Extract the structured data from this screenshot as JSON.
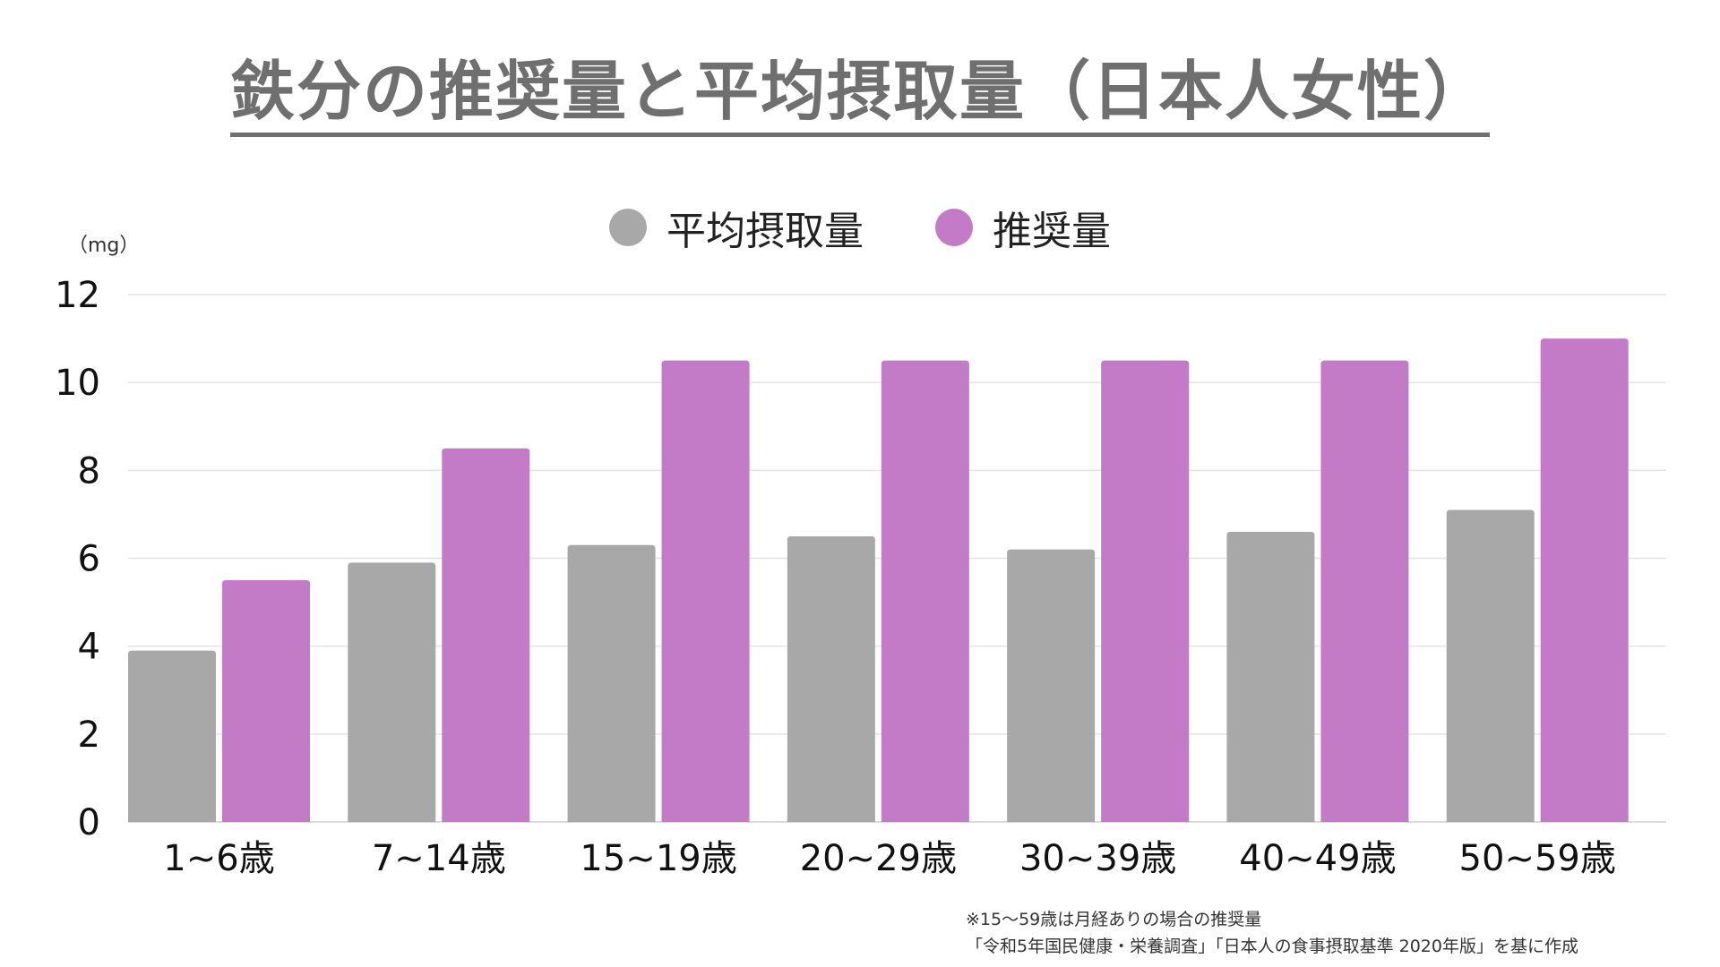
{
  "chart_data": {
    "type": "bar",
    "title": "鉄分の推奨量と平均摂取量（日本人女性）",
    "ylabel": "（mg）",
    "xlabel": "",
    "ylim": [
      0,
      12
    ],
    "yticks": [
      0,
      2,
      4,
      6,
      8,
      10,
      12
    ],
    "grid": true,
    "legend_position": "top-center",
    "categories": [
      "1~6歳",
      "7~14歳",
      "15~19歳",
      "20~29歳",
      "30~39歳",
      "40~49歳",
      "50~59歳"
    ],
    "series": [
      {
        "name": "平均摂取量",
        "color": "#a8a8a8",
        "values": [
          3.9,
          5.9,
          6.3,
          6.5,
          6.2,
          6.6,
          7.1
        ]
      },
      {
        "name": "推奨量",
        "color": "#c47bc7",
        "values": [
          5.5,
          8.5,
          10.5,
          10.5,
          10.5,
          10.5,
          11.0
        ]
      }
    ]
  },
  "footnotes": {
    "line1": "※15〜59歳は月経ありの場合の推奨量",
    "line2": "「令和5年国民健康・栄養調査」「日本人の食事摂取基準 2020年版」を基に作成"
  },
  "colors": {
    "title": "#6f6f6f",
    "grid": "#e3e3e3",
    "axis": "#cfcfcf"
  }
}
